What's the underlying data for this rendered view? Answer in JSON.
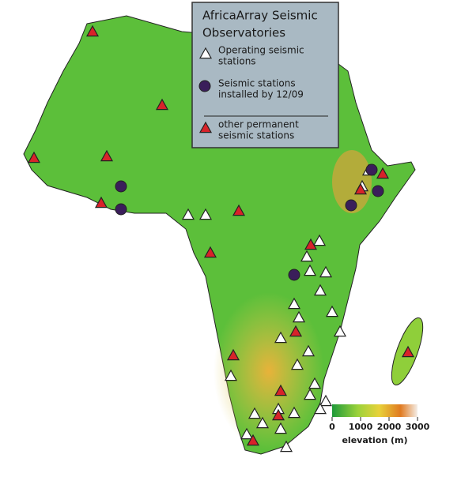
{
  "legend": {
    "title": [
      "AfricaArray Seismic",
      "Observatories"
    ],
    "entries": [
      [
        "Operating seismic",
        "stations"
      ],
      [
        "Seismic stations",
        "installed by 12/09"
      ],
      [
        "other permanent",
        "seismic stations"
      ]
    ]
  },
  "colorbar": {
    "range": [
      0,
      3000
    ],
    "ticks": [
      0,
      1000,
      2000,
      3000
    ],
    "label": "elevation (m)"
  }
}
